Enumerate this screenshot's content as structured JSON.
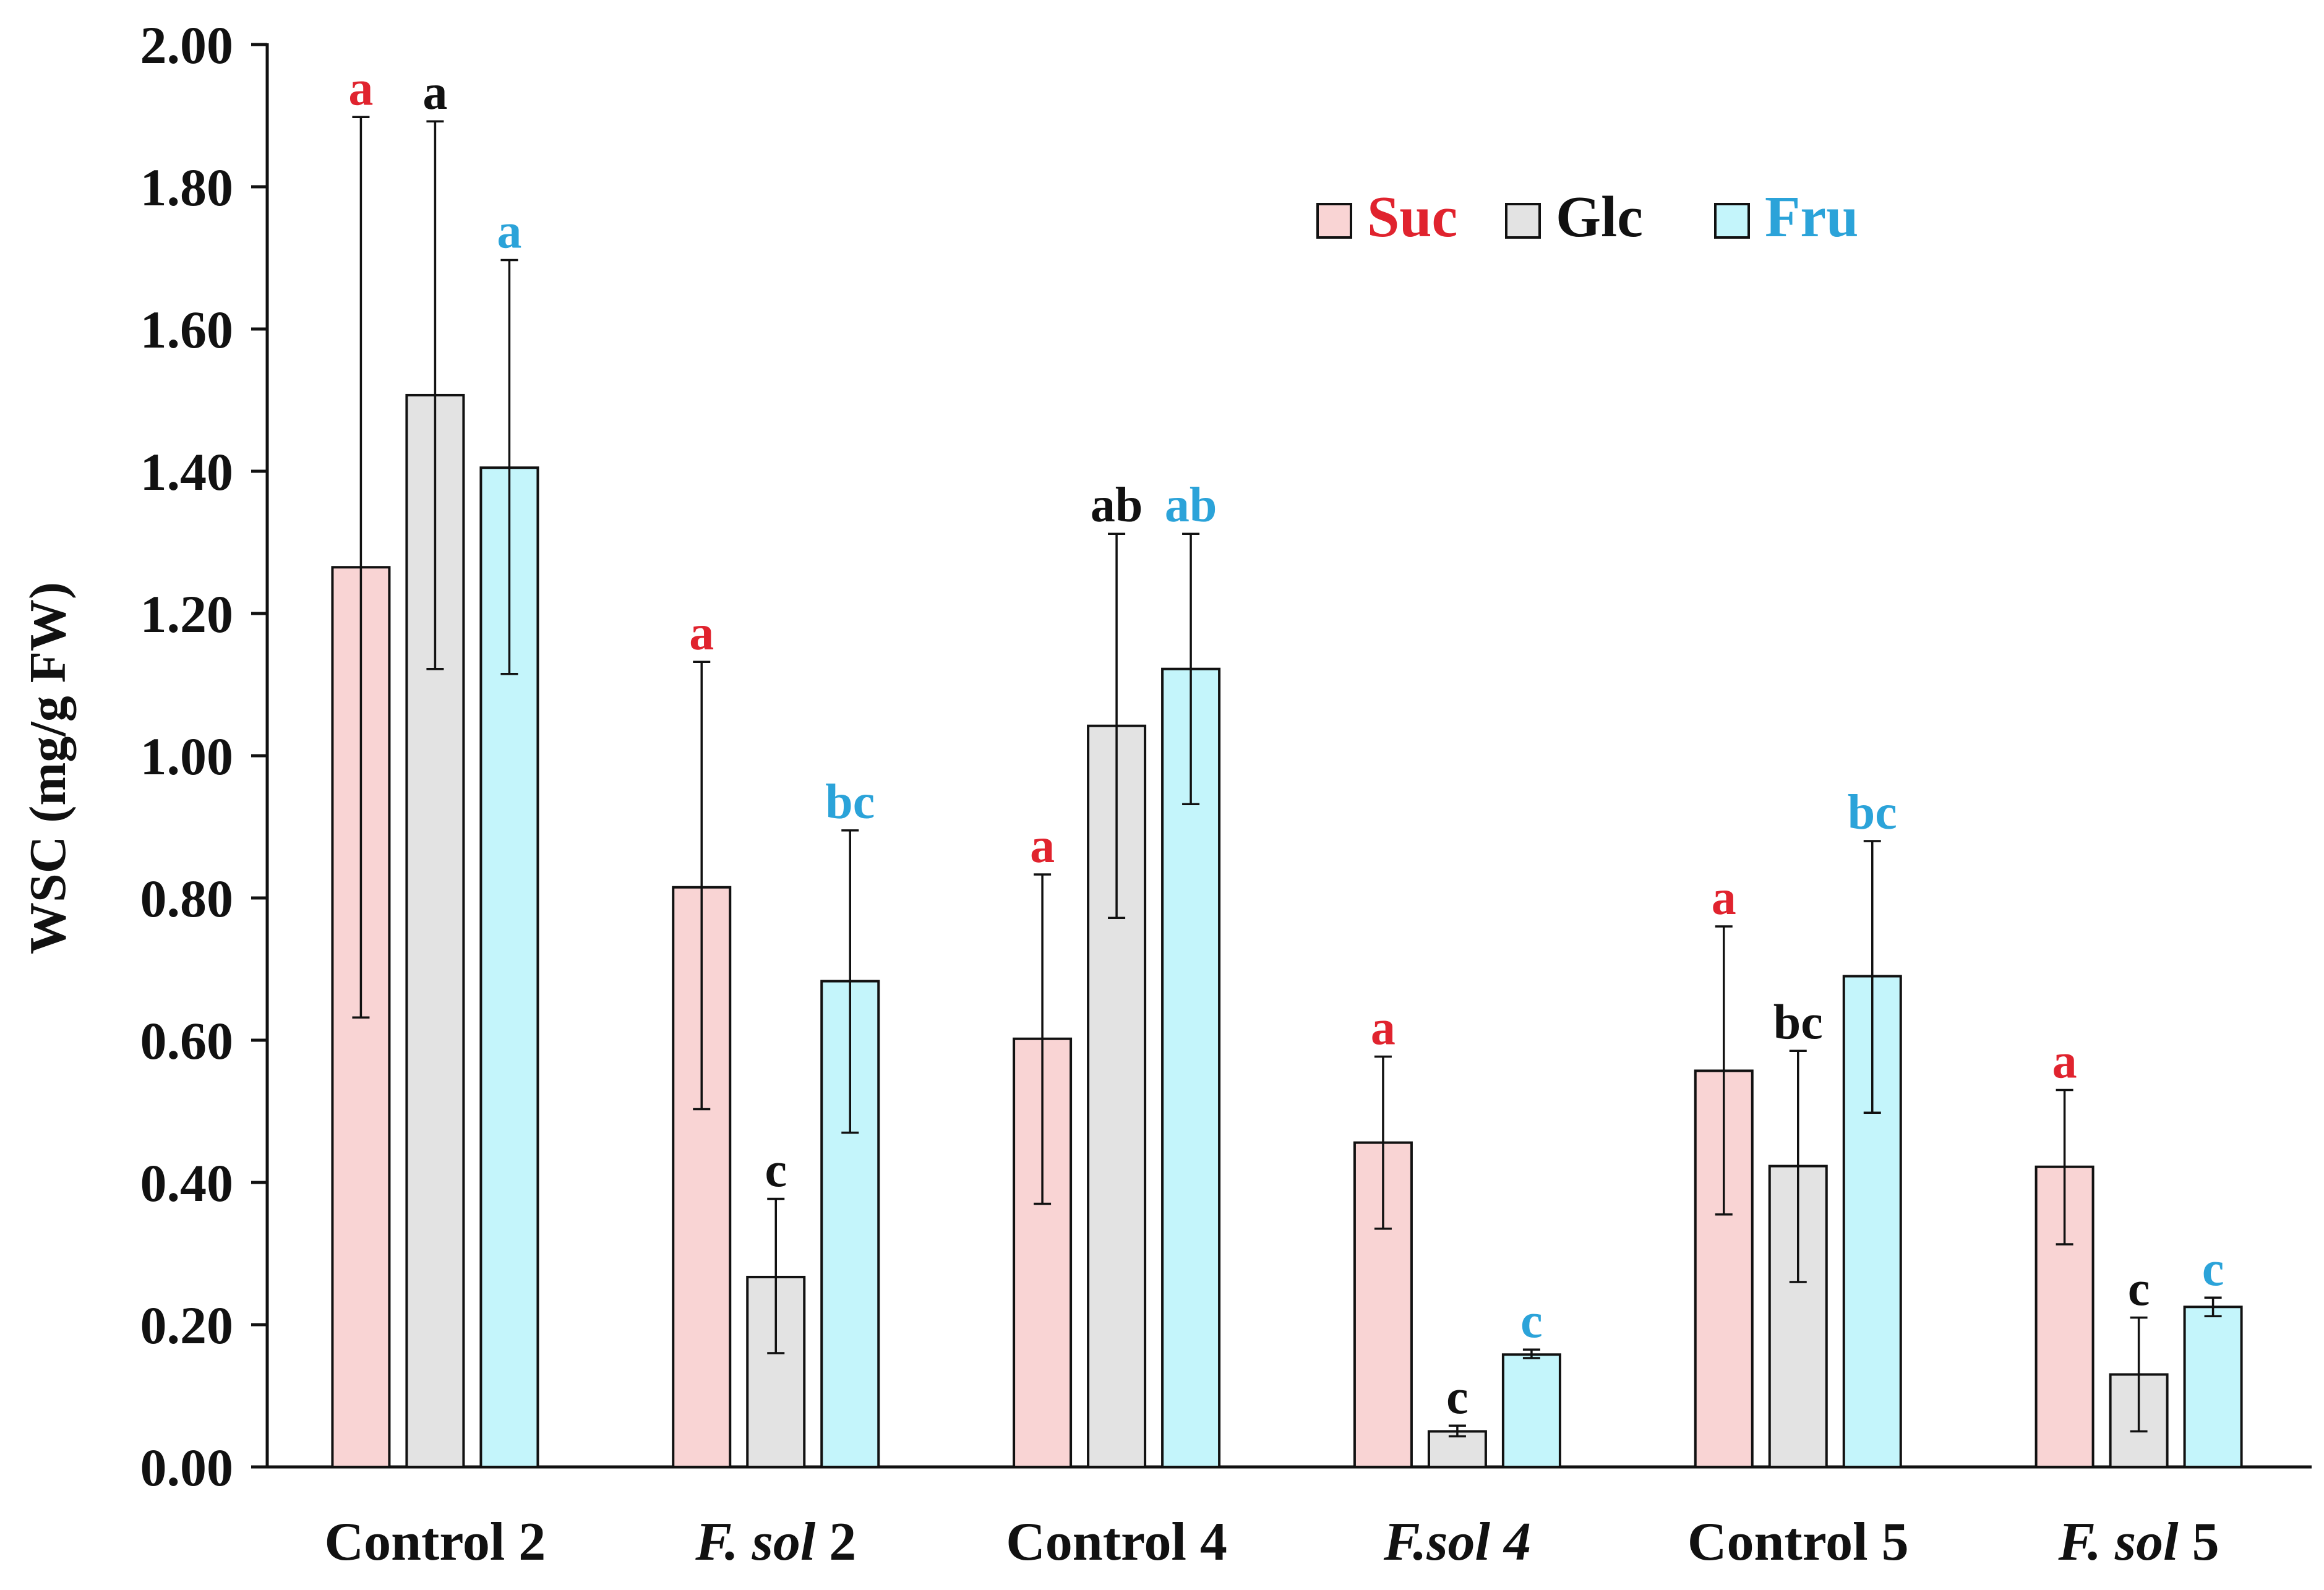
{
  "chart_data": {
    "type": "bar",
    "ylabel": "WSC (mg/g FW)",
    "xlabel": "",
    "ylim": [
      0,
      2.0
    ],
    "yticks": [
      "0.00",
      "0.20",
      "0.40",
      "0.60",
      "0.80",
      "1.00",
      "1.20",
      "1.40",
      "1.60",
      "1.80",
      "2.00"
    ],
    "grid": false,
    "legend_position": "top-right",
    "categories": [
      {
        "label": "Control 2",
        "parts": [
          {
            "text": "Control 2",
            "italic": false
          }
        ]
      },
      {
        "label": "F. sol 2",
        "parts": [
          {
            "text": "F. sol",
            "italic": true
          },
          {
            "text": " 2",
            "italic": false
          }
        ]
      },
      {
        "label": "Control 4",
        "parts": [
          {
            "text": "Control 4",
            "italic": false
          }
        ]
      },
      {
        "label": "F.sol 4",
        "parts": [
          {
            "text": "F.sol 4",
            "italic": true
          }
        ]
      },
      {
        "label": "Control 5",
        "parts": [
          {
            "text": "Control 5",
            "italic": false
          }
        ]
      },
      {
        "label": "F. sol 5",
        "parts": [
          {
            "text": "F. sol",
            "italic": true
          },
          {
            "text": " 5",
            "italic": false
          }
        ]
      }
    ],
    "series": [
      {
        "name": "Suc",
        "fill": "#f9d4d4",
        "label_color": "#e0232e",
        "values": [
          1.265,
          0.815,
          0.602,
          0.456,
          0.557,
          0.422
        ],
        "err_high": [
          1.898,
          1.132,
          0.833,
          0.577,
          0.76,
          0.53
        ],
        "err_low": [
          0.632,
          0.503,
          0.37,
          0.335,
          0.355,
          0.313
        ],
        "letters": [
          "a",
          "a",
          "a",
          "a",
          "a",
          "a"
        ]
      },
      {
        "name": "Glc",
        "fill": "#e3e3e3",
        "label_color": "#111111",
        "values": [
          1.507,
          0.267,
          1.042,
          0.05,
          0.423,
          0.13
        ],
        "err_high": [
          1.892,
          0.377,
          1.312,
          0.058,
          0.585,
          0.21
        ],
        "err_low": [
          1.122,
          0.16,
          0.772,
          0.043,
          0.26,
          0.05
        ],
        "letters": [
          "a",
          "c",
          "ab",
          "c",
          "bc",
          "c"
        ]
      },
      {
        "name": "Fru",
        "fill": "#c4f5fb",
        "label_color": "#2ba3d9",
        "values": [
          1.405,
          0.683,
          1.122,
          0.158,
          0.69,
          0.225
        ],
        "err_high": [
          1.697,
          0.895,
          1.312,
          0.165,
          0.88,
          0.238
        ],
        "err_low": [
          1.115,
          0.47,
          0.932,
          0.153,
          0.498,
          0.212
        ],
        "letters": [
          "a",
          "bc",
          "ab",
          "c",
          "bc",
          "c"
        ]
      }
    ]
  }
}
